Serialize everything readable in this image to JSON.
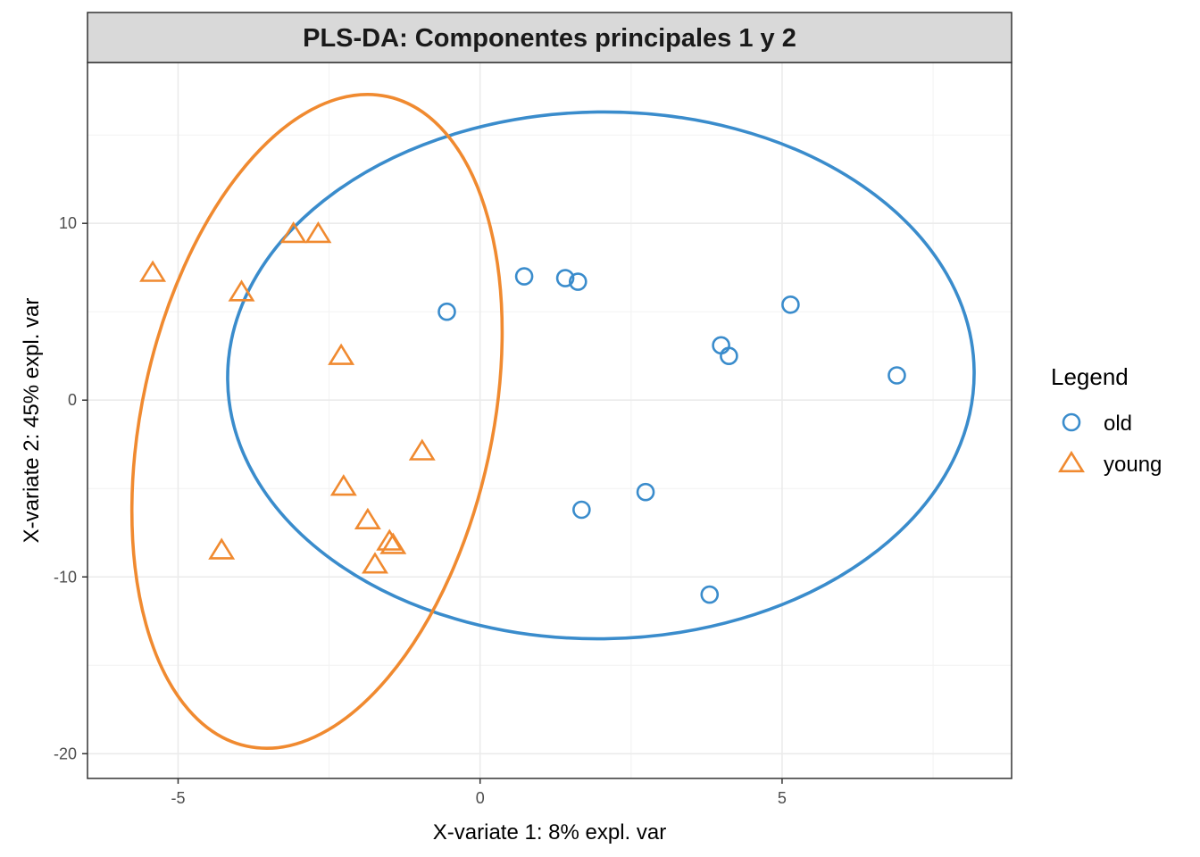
{
  "chart_data": {
    "type": "scatter",
    "title": "PLS-DA: Componentes principales 1 y 2",
    "xlabel": "X-variate 1: 8% expl. var",
    "ylabel": "X-variate 2: 45% expl. var",
    "xlim": [
      -6.5,
      8.8
    ],
    "ylim": [
      -21.4,
      19.1
    ],
    "x_ticks": [
      -5,
      0,
      5
    ],
    "y_ticks": [
      10,
      0,
      -10,
      -20
    ],
    "x_tick_labels": [
      "-5",
      "0",
      "5"
    ],
    "y_tick_labels": [
      "10",
      "0",
      "-10",
      "-20"
    ],
    "grid": true,
    "legend": {
      "title": "Legend",
      "position": "right",
      "entries": [
        {
          "label": "old",
          "shape": "circle",
          "color": "#3a8ccc"
        },
        {
          "label": "young",
          "shape": "triangle",
          "color": "#f08a30"
        }
      ]
    },
    "series": [
      {
        "name": "old",
        "color": "#3a8ccc",
        "shape": "circle",
        "points": [
          {
            "x": -0.55,
            "y": 5.0
          },
          {
            "x": 0.73,
            "y": 7.0
          },
          {
            "x": 1.41,
            "y": 6.9
          },
          {
            "x": 1.62,
            "y": 6.7
          },
          {
            "x": 5.14,
            "y": 5.4
          },
          {
            "x": 3.99,
            "y": 3.1
          },
          {
            "x": 4.12,
            "y": 2.5
          },
          {
            "x": 6.9,
            "y": 1.4
          },
          {
            "x": 2.74,
            "y": -5.2
          },
          {
            "x": 1.68,
            "y": -6.2
          },
          {
            "x": 3.8,
            "y": -11.0
          }
        ],
        "ellipse": {
          "cx": 2.0,
          "cy": 1.4,
          "rx": 6.18,
          "ry": 14.9,
          "angle_deg": -0.7
        }
      },
      {
        "name": "young",
        "color": "#f08a30",
        "shape": "triangle",
        "points": [
          {
            "x": -5.42,
            "y": 7.2
          },
          {
            "x": -3.95,
            "y": 6.1
          },
          {
            "x": -3.09,
            "y": 9.4
          },
          {
            "x": -2.68,
            "y": 9.4
          },
          {
            "x": -2.3,
            "y": 2.5
          },
          {
            "x": -0.96,
            "y": -2.9
          },
          {
            "x": -2.26,
            "y": -4.9
          },
          {
            "x": -1.86,
            "y": -6.8
          },
          {
            "x": -1.5,
            "y": -8.0
          },
          {
            "x": -1.44,
            "y": -8.2
          },
          {
            "x": -1.74,
            "y": -9.3
          },
          {
            "x": -4.28,
            "y": -8.5
          }
        ],
        "ellipse": {
          "cx": -2.7,
          "cy": -1.2,
          "rx": 2.9,
          "ry": 18.8,
          "angle_deg": 12.25
        }
      }
    ]
  }
}
